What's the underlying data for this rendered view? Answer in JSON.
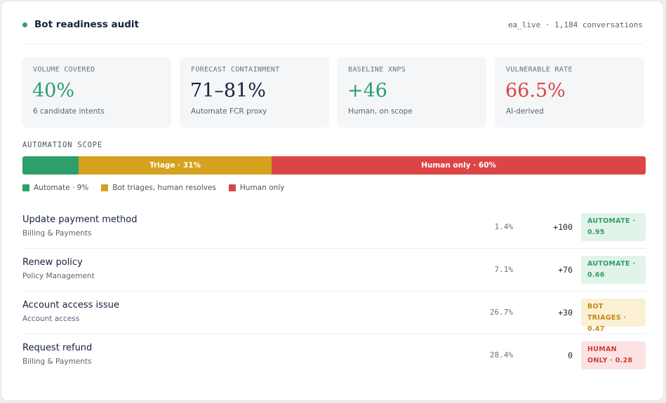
{
  "header": {
    "title": "Bot readiness audit",
    "meta": "ea_live · 1,184 conversations"
  },
  "stats": [
    {
      "label": "VOLUME COVERED",
      "value": "40%",
      "sub": "6 candidate intents",
      "color": "#2e9e6a"
    },
    {
      "label": "FORECAST CONTAINMENT",
      "value": "71–81%",
      "sub": "Automate FCR proxy",
      "color": "#14213d"
    },
    {
      "label": "BASELINE XNPS",
      "value": "+46",
      "sub": "Human, on scope",
      "color": "#2e9e6a"
    },
    {
      "label": "VULNERABLE RATE",
      "value": "66.5%",
      "sub": "AI-derived",
      "color": "#dc4545"
    }
  ],
  "scope": {
    "label": "AUTOMATION SCOPE",
    "segments": [
      {
        "label": "",
        "fraction": 0.09,
        "color": "#2e9e6a"
      },
      {
        "label": "Triage · 31%",
        "fraction": 0.31,
        "color": "#d4a21e"
      },
      {
        "label": "Human only · 60%",
        "fraction": 0.6,
        "color": "#dc4545"
      }
    ],
    "legend": [
      {
        "label": "Automate · 9%",
        "color": "#2e9e6a"
      },
      {
        "label": "Bot triages, human resolves",
        "color": "#d4a21e"
      },
      {
        "label": "Human only",
        "color": "#dc4545"
      }
    ]
  },
  "intents": [
    {
      "name": "Update payment method",
      "category": "Billing & Payments",
      "share": "1.4%",
      "score": "+100",
      "badge": "AUTOMATE · 0.95",
      "badge_color": "#2e9e6a",
      "badge_bg": "#e2f3ea"
    },
    {
      "name": "Renew policy",
      "category": "Policy Management",
      "share": "7.1%",
      "score": "+76",
      "badge": "AUTOMATE · 0.66",
      "badge_color": "#2e9e6a",
      "badge_bg": "#e2f3ea"
    },
    {
      "name": "Account access issue",
      "category": "Account access",
      "share": "26.7%",
      "score": "+30",
      "badge": "BOT TRIAGES · 0.47",
      "badge_color": "#c08a12",
      "badge_bg": "#fbf0d4"
    },
    {
      "name": "Request refund",
      "category": "Billing & Payments",
      "share": "28.4%",
      "score": "0",
      "badge": "HUMAN ONLY · 0.28",
      "badge_color": "#d23a3a",
      "badge_bg": "#fbe3e3"
    }
  ]
}
